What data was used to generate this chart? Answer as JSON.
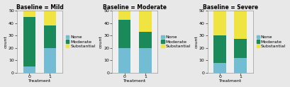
{
  "panels": [
    {
      "title": "Baseline = Mild",
      "bars": {
        "0": {
          "None": 5,
          "Moderate": 40,
          "Substantial": 5
        },
        "1": {
          "None": 20,
          "Moderate": 18,
          "Substantial": 12
        }
      }
    },
    {
      "title": "Baseline = Moderate",
      "bars": {
        "0": {
          "None": 20,
          "Moderate": 23,
          "Substantial": 7
        },
        "1": {
          "None": 20,
          "Moderate": 13,
          "Substantial": 17
        }
      }
    },
    {
      "title": "Baseline = Severe",
      "bars": {
        "0": {
          "None": 8,
          "Moderate": 22,
          "Substantial": 20
        },
        "1": {
          "None": 12,
          "Moderate": 15,
          "Substantial": 23
        }
      }
    }
  ],
  "categories": [
    "None",
    "Moderate",
    "Substantial"
  ],
  "colors": {
    "None": "#72BCD4",
    "Moderate": "#1B8A5A",
    "Substantial": "#F0E442"
  },
  "ylim": [
    0,
    50
  ],
  "yticks": [
    0,
    10,
    20,
    30,
    40,
    50
  ],
  "xlabel": "Treatment",
  "ylabel": "count",
  "bar_width": 0.6,
  "panel_bg": "#EFEFEF",
  "fig_bg": "#E8E8E8",
  "title_fontsize": 5.5,
  "label_fontsize": 4.5,
  "tick_fontsize": 4.5,
  "legend_fontsize": 4.5
}
